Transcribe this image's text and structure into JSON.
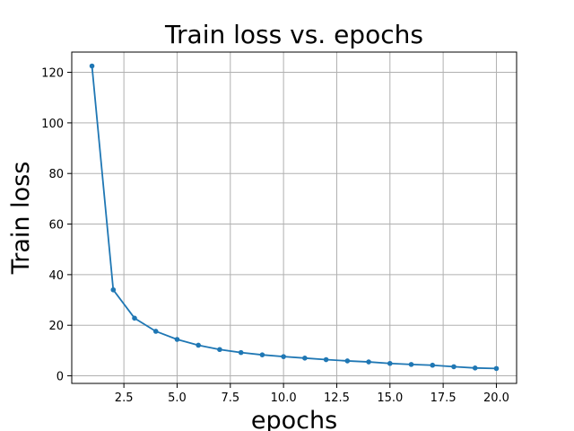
{
  "chart_data": {
    "type": "line",
    "title": "Train loss vs. epochs",
    "xlabel": "epochs",
    "ylabel": "Train loss",
    "xlim": [
      0.05,
      20.95
    ],
    "ylim": [
      -3.0,
      128.0
    ],
    "xticks": [
      2.5,
      5.0,
      7.5,
      10.0,
      12.5,
      15.0,
      17.5,
      20.0
    ],
    "xtick_labels": [
      "2.5",
      "5.0",
      "7.5",
      "10.0",
      "12.5",
      "15.0",
      "17.5",
      "20.0"
    ],
    "yticks": [
      0,
      20,
      40,
      60,
      80,
      100,
      120
    ],
    "ytick_labels": [
      "0",
      "20",
      "40",
      "60",
      "80",
      "100",
      "120"
    ],
    "grid": true,
    "series": [
      {
        "color": "#1f77b4",
        "marker": "circle",
        "x": [
          1,
          2,
          3,
          4,
          5,
          6,
          7,
          8,
          9,
          10,
          11,
          12,
          13,
          14,
          15,
          16,
          17,
          18,
          19,
          20
        ],
        "y": [
          122.5,
          34.0,
          22.8,
          17.6,
          14.4,
          12.1,
          10.4,
          9.2,
          8.3,
          7.6,
          7.0,
          6.4,
          5.9,
          5.5,
          4.9,
          4.5,
          4.2,
          3.6,
          3.1,
          2.9
        ]
      }
    ]
  }
}
